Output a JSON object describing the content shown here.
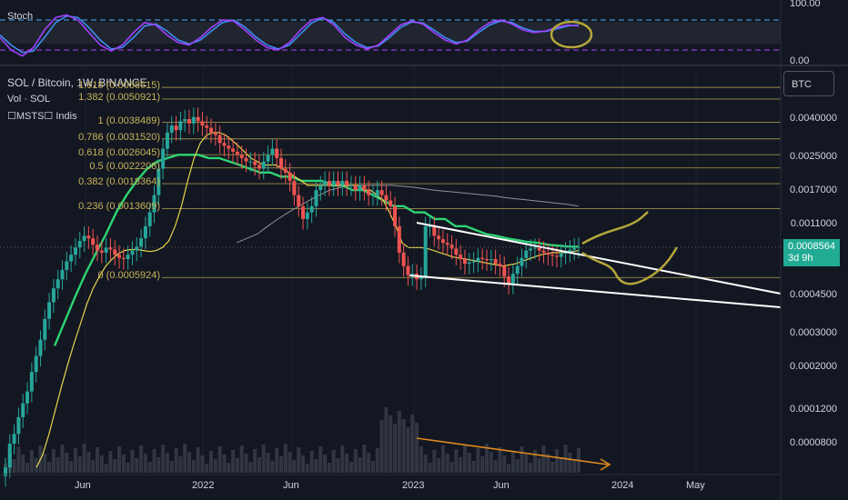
{
  "stoch_panel": {
    "label": "Stoch",
    "scale_top": "100.00",
    "scale_bottom": "0.00"
  },
  "legend": {
    "title": "SOL / Bitcoin, 1W, BINANCE",
    "volume": "Vol · SOL",
    "indicator": "☐MSTS☐ Indis"
  },
  "currency_button": "BTC",
  "current_price": {
    "value": "0.0008564",
    "countdown": "3d 9h",
    "color": "#22ab94"
  },
  "colors": {
    "background": "#131722",
    "up": "#26a69a",
    "down": "#ef5350",
    "fib": "#c9b458",
    "ema_green": "#2ed573",
    "ema_yellow": "#e8d44d",
    "trendline": "#ffffff",
    "drawing": "#b5a63a",
    "arrow": "#e08a1c",
    "stoch_k": "#a040ff",
    "stoch_d": "#3f8df0"
  },
  "chart_data": {
    "type": "candlestick",
    "title": "SOL / Bitcoin, 1W, BINANCE",
    "y_scale": "log",
    "price_ticks": [
      "0.0040000",
      "0.0025000",
      "0.0017000",
      "0.0011000",
      "0.0004500",
      "0.0003000",
      "0.0002000",
      "0.0001200",
      "0.0000800"
    ],
    "time_ticks": [
      "Jun",
      "2022",
      "Jun",
      "2023",
      "Jun",
      "2024",
      "May"
    ],
    "fib_levels": [
      {
        "ratio": "1.618",
        "price": "0.0058615"
      },
      {
        "ratio": "1.382",
        "price": "0.0050921"
      },
      {
        "ratio": "1",
        "price": "0.0038489"
      },
      {
        "ratio": "0.786",
        "price": "0.0031520"
      },
      {
        "ratio": "0.618",
        "price": "0.0026045"
      },
      {
        "ratio": "0.5",
        "price": "0.0022208"
      },
      {
        "ratio": "0.382",
        "price": "0.0018364"
      },
      {
        "ratio": "0.236",
        "price": "0.0013609"
      },
      {
        "ratio": "0",
        "price": "0.0005924"
      }
    ],
    "close_series": [
      6e-05,
      8e-05,
      9e-05,
      0.00011,
      0.00013,
      0.00015,
      0.00019,
      0.00023,
      0.00028,
      0.00036,
      0.00044,
      0.00052,
      0.00058,
      0.00065,
      0.00072,
      0.00078,
      0.00085,
      0.00092,
      0.00098,
      0.00095,
      0.00088,
      0.00082,
      0.0008,
      0.00085,
      0.00083,
      0.00078,
      0.00075,
      0.00074,
      0.00078,
      0.00082,
      0.00086,
      0.00095,
      0.0011,
      0.0013,
      0.0016,
      0.0022,
      0.0028,
      0.0034,
      0.0037,
      0.0035,
      0.0039,
      0.004,
      0.0038,
      0.0041,
      0.0039,
      0.0037,
      0.0036,
      0.0034,
      0.0033,
      0.003,
      0.0029,
      0.0028,
      0.0027,
      0.0026,
      0.0025,
      0.0024,
      0.0024,
      0.0023,
      0.0022,
      0.0024,
      0.0026,
      0.0028,
      0.0025,
      0.0022,
      0.0021,
      0.0019,
      0.0016,
      0.0014,
      0.0012,
      0.0013,
      0.0014,
      0.0017,
      0.0018,
      0.0019,
      0.0018,
      0.0019,
      0.0018,
      0.0019,
      0.0018,
      0.0018,
      0.0017,
      0.0018,
      0.0017,
      0.0016,
      0.0016,
      0.0017,
      0.0016,
      0.0015,
      0.0014,
      0.0011,
      0.0008,
      0.00068,
      0.00061,
      0.00062,
      0.00058,
      0.0006,
      0.0011,
      0.0011,
      0.00098,
      0.00094,
      0.0009,
      0.00088,
      0.00084,
      0.00078,
      0.00074,
      0.0007,
      0.00071,
      0.00072,
      0.00075,
      0.00074,
      0.00073,
      0.00074,
      0.0007,
      0.00068,
      0.0006,
      0.00055,
      0.00062,
      0.00068,
      0.00075,
      0.00082,
      0.00084,
      0.00085,
      0.00082,
      0.0008,
      0.00078,
      0.00077,
      0.00076,
      0.00079,
      0.00081,
      0.00083,
      0.00085,
      0.0008564
    ],
    "ema_fast": [
      6e-05,
      7e-05,
      9e-05,
      0.00012,
      0.00016,
      0.00021,
      0.00027,
      0.00034,
      0.00043,
      0.00052,
      0.0006,
      0.00068,
      0.00074,
      0.00079,
      0.00082,
      0.00083,
      0.00083,
      0.00082,
      0.00081,
      0.00082,
      0.00085,
      0.00092,
      0.0011,
      0.0014,
      0.0019,
      0.0025,
      0.003,
      0.0033,
      0.0034,
      0.0034,
      0.0033,
      0.0031,
      0.0029,
      0.0027,
      0.0025,
      0.0024,
      0.0023,
      0.0023,
      0.0023,
      0.0022,
      0.0021,
      0.002,
      0.0019,
      0.0018,
      0.0018,
      0.0018,
      0.0018,
      0.0018,
      0.0018,
      0.0018,
      0.0018,
      0.0018,
      0.0017,
      0.0017,
      0.0016,
      0.0015,
      0.0013,
      0.0011,
      0.0009,
      0.00085,
      0.00085,
      0.00085,
      0.00084,
      0.00082,
      0.0008,
      0.00078,
      0.00076,
      0.00075,
      0.00074,
      0.00073,
      0.00072,
      0.00071,
      0.0007,
      0.00069,
      0.00068,
      0.00069,
      0.0007,
      0.00072,
      0.00074,
      0.00076,
      0.00078,
      0.00079,
      0.0008,
      0.0008,
      0.0008,
      0.00081,
      0.00082
    ],
    "ema_slow": [
      0.00026,
      0.00035,
      0.00047,
      0.00062,
      0.00079,
      0.001,
      0.0013,
      0.0016,
      0.0019,
      0.0022,
      0.0024,
      0.0025,
      0.0026,
      0.0026,
      0.0026,
      0.0025,
      0.0025,
      0.0024,
      0.0023,
      0.0022,
      0.0021,
      0.0021,
      0.002,
      0.002,
      0.0019,
      0.0019,
      0.0019,
      0.0018,
      0.0018,
      0.0017,
      0.0017,
      0.0016,
      0.0015,
      0.0014,
      0.0014,
      0.0013,
      0.0013,
      0.0012,
      0.0012,
      0.0011,
      0.0011,
      0.00105,
      0.001,
      0.00098,
      0.00095,
      0.00093,
      0.00091,
      0.0009,
      0.00088,
      0.00087,
      0.00086,
      0.00086
    ],
    "ma_long": [
      0.0009,
      0.00095,
      0.001,
      0.0011,
      0.0012,
      0.0013,
      0.0014,
      0.0015,
      0.0016,
      0.0017,
      0.00175,
      0.0018,
      0.0018,
      0.0018,
      0.0018,
      0.0018,
      0.00178,
      0.00176,
      0.00173,
      0.0017,
      0.00168,
      0.00166,
      0.00164,
      0.00162,
      0.0016,
      0.00158,
      0.00155,
      0.00153,
      0.00151,
      0.00149,
      0.00147,
      0.00145,
      0.00143,
      0.0014
    ],
    "stoch_k": [
      45,
      20,
      8,
      25,
      60,
      85,
      90,
      80,
      55,
      30,
      18,
      30,
      55,
      75,
      70,
      50,
      35,
      30,
      45,
      65,
      80,
      78,
      60,
      40,
      25,
      20,
      35,
      60,
      80,
      85,
      70,
      45,
      30,
      22,
      30,
      50,
      70,
      78,
      72,
      55,
      40,
      32,
      40,
      60,
      75,
      80,
      72,
      60,
      55,
      58,
      65,
      70,
      68
    ],
    "stoch_d": [
      50,
      30,
      15,
      18,
      45,
      75,
      88,
      85,
      65,
      40,
      22,
      25,
      45,
      68,
      72,
      58,
      40,
      32,
      40,
      58,
      75,
      80,
      66,
      46,
      30,
      22,
      30,
      52,
      74,
      84,
      75,
      52,
      35,
      25,
      28,
      45,
      65,
      76,
      74,
      60,
      45,
      35,
      38,
      55,
      70,
      78,
      75,
      64,
      57,
      57,
      62,
      68,
      70
    ],
    "stoch_levels": [
      80,
      20
    ]
  }
}
